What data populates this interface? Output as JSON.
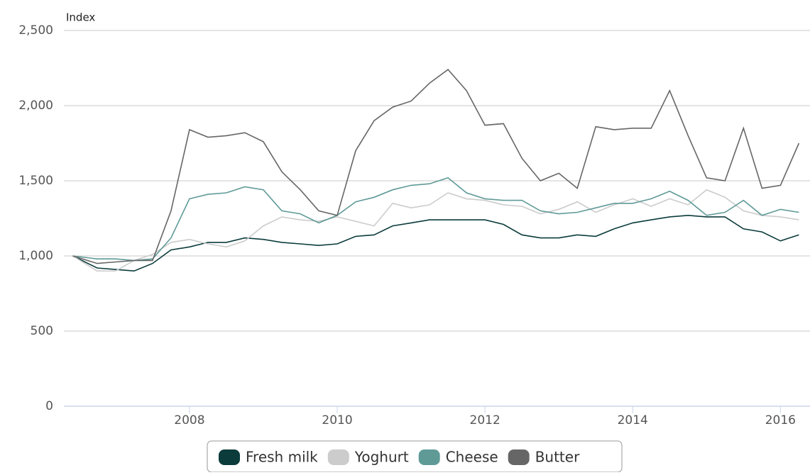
{
  "chart_data": {
    "type": "line",
    "y_label": "Index",
    "x": [
      2006.42,
      2006.75,
      2007,
      2007.25,
      2007.5,
      2007.75,
      2008,
      2008.25,
      2008.5,
      2008.75,
      2009,
      2009.25,
      2009.5,
      2009.75,
      2010,
      2010.25,
      2010.5,
      2010.75,
      2011,
      2011.25,
      2011.5,
      2011.75,
      2012,
      2012.25,
      2012.5,
      2012.75,
      2013,
      2013.25,
      2013.5,
      2013.75,
      2014,
      2014.25,
      2014.5,
      2014.75,
      2015,
      2015.25,
      2015.5,
      2015.75,
      2016,
      2016.25
    ],
    "series": [
      {
        "name": "Fresh milk",
        "color": "#0b3b3b",
        "values": [
          1000,
          920,
          910,
          900,
          950,
          1040,
          1060,
          1090,
          1090,
          1120,
          1110,
          1090,
          1080,
          1070,
          1080,
          1130,
          1140,
          1200,
          1220,
          1240,
          1240,
          1240,
          1240,
          1210,
          1140,
          1120,
          1120,
          1140,
          1130,
          1180,
          1220,
          1240,
          1260,
          1270,
          1260,
          1260,
          1180,
          1160,
          1100,
          1140
        ]
      },
      {
        "name": "Yoghurt",
        "color": "#cccccc",
        "values": [
          1000,
          900,
          900,
          970,
          1010,
          1090,
          1110,
          1080,
          1060,
          1100,
          1200,
          1260,
          1240,
          1230,
          1260,
          1230,
          1200,
          1350,
          1320,
          1340,
          1420,
          1380,
          1370,
          1340,
          1330,
          1280,
          1310,
          1360,
          1290,
          1340,
          1380,
          1330,
          1380,
          1340,
          1440,
          1390,
          1300,
          1270,
          1260,
          1240
        ]
      },
      {
        "name": "Cheese",
        "color": "#5f9a97",
        "values": [
          1000,
          980,
          980,
          970,
          980,
          1120,
          1380,
          1410,
          1420,
          1460,
          1440,
          1300,
          1280,
          1220,
          1270,
          1360,
          1390,
          1440,
          1470,
          1480,
          1520,
          1420,
          1380,
          1370,
          1370,
          1300,
          1280,
          1290,
          1320,
          1350,
          1350,
          1380,
          1430,
          1370,
          1270,
          1290,
          1370,
          1270,
          1310,
          1290
        ]
      },
      {
        "name": "Butter",
        "color": "#666666",
        "values": [
          1000,
          950,
          960,
          970,
          970,
          1300,
          1840,
          1790,
          1800,
          1820,
          1760,
          1560,
          1440,
          1300,
          1270,
          1700,
          1900,
          1990,
          2030,
          2150,
          2240,
          2100,
          1870,
          1880,
          1650,
          1500,
          1550,
          1450,
          1860,
          1840,
          1850,
          1850,
          2100,
          1800,
          1520,
          1500,
          1850,
          1450,
          1470,
          1750
        ]
      }
    ],
    "xlim": [
      2006.3,
      2016.4
    ],
    "xticks": [
      2008,
      2010,
      2012,
      2014,
      2016
    ],
    "ylim": [
      0,
      2500
    ],
    "yticks": [
      0,
      500,
      {
        "value": 1000,
        "label": "1,000"
      },
      {
        "value": 1500,
        "label": "1,500"
      },
      {
        "value": 2000,
        "label": "2,000"
      },
      {
        "value": 2500,
        "label": "2,500"
      }
    ],
    "grid": true
  }
}
